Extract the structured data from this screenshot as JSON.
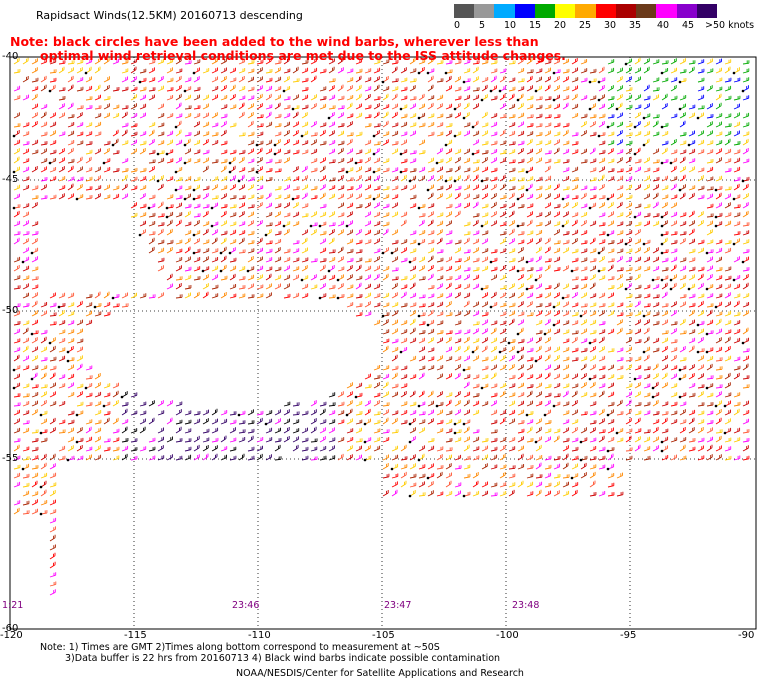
{
  "title": "Rapidsact Winds(12.5KM) 20160713 descending",
  "note_line1": "Note: black circles have been added to the wind barbs, wherever less than",
  "note_line2": "optimal wind retrieval conditions are met due to the ISS attitude changes.",
  "legend": {
    "labels": [
      "0",
      "5",
      "10",
      "15",
      "20",
      "25",
      "30",
      "35",
      "40",
      "45",
      ">50 knots"
    ],
    "colors": [
      "#555555",
      "#999999",
      "#00aaff",
      "#0000ff",
      "#00aa00",
      "#ffff00",
      "#ffaa00",
      "#ff0000",
      "#aa0000",
      "#6b3a1a",
      "#ff00ff",
      "#8800cc",
      "#330066"
    ]
  },
  "lon_labels": [
    "-120",
    "-115",
    "-110",
    "-105",
    "-100",
    "-95",
    "-90"
  ],
  "lat_labels": [
    "-40",
    "-45",
    "-50",
    "-55",
    "-60"
  ],
  "time_labels": [
    "1:21",
    "23:46",
    "23:47",
    "23:48"
  ],
  "footer": {
    "line1": "Note: 1) Times are GMT 2)Times along bottom correspond to measurement at ~50S",
    "line2": "3)Data buffer is 22 hrs from 20160713 4) Black wind barbs indicate possible contamination",
    "line3": "NOAA/NESDIS/Center for Satellite Applications and Research"
  }
}
